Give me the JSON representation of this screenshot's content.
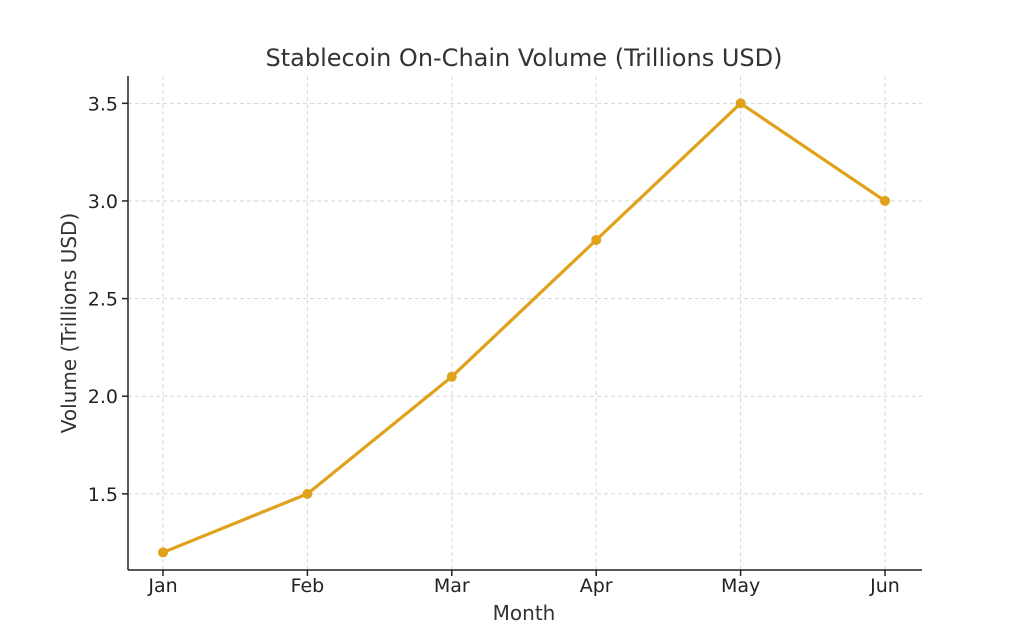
{
  "chart_data": {
    "type": "line",
    "title": "Stablecoin On-Chain Volume (Trillions USD)",
    "xlabel": "Month",
    "ylabel": "Volume (Trillions USD)",
    "categories": [
      "Jan",
      "Feb",
      "Mar",
      "Apr",
      "May",
      "Jun"
    ],
    "series": [
      {
        "values": [
          1.2,
          1.5,
          2.1,
          2.8,
          3.5,
          3.0
        ]
      }
    ],
    "ylim": [
      1.11,
      3.64
    ],
    "yticks": [
      1.5,
      2.0,
      2.5,
      3.0,
      3.5
    ],
    "ytick_labels": [
      "1.5",
      "2.0",
      "2.5",
      "3.0",
      "3.5"
    ],
    "grid": true,
    "line_color": "#E0A11B"
  }
}
